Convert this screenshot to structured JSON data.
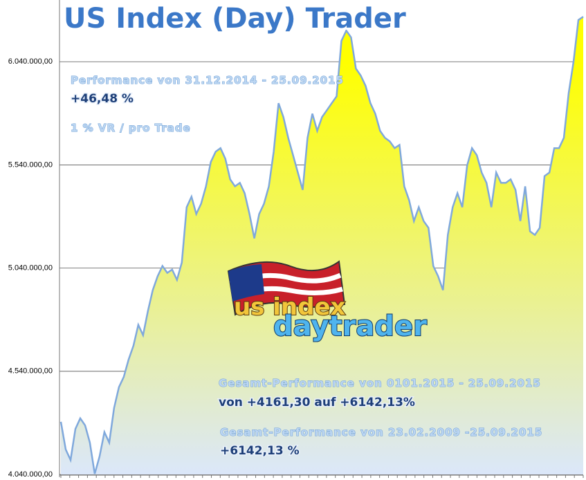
{
  "chart_data": {
    "type": "area",
    "title": "US Index (Day) Trader",
    "annotations": [
      "Performance  von  31.12.2014 - 25.09.2015",
      "+46,48  %",
      "1 % VR / pro Trade",
      "Gesamt-Performance  von  0101.2015 - 25.09.2015",
      "von +4161,30 auf  +6142,13%",
      "Gesamt-Performance  von  23.02.2009 -25.09.2015",
      "+6142,13 %"
    ],
    "logo": [
      "us index",
      "daytrader"
    ],
    "color": "#7fa8dc",
    "fill_top": "#ffff00",
    "fill_bottom": "#dbe7fa",
    "grid": true,
    "ylim": [
      4040000,
      6339000
    ],
    "yticks": [
      {
        "value": 4040000,
        "label": "4.040.000,00"
      },
      {
        "value": 4540000,
        "label": "4.540.000,00"
      },
      {
        "value": 5040000,
        "label": "5.040.000,00"
      },
      {
        "value": 5540000,
        "label": "5.540.000,00"
      },
      {
        "value": 6040000,
        "label": "6.040.000,00"
      }
    ],
    "values": [
      4295000,
      4161000,
      4110000,
      4261000,
      4312000,
      4278000,
      4194000,
      4043000,
      4127000,
      4245000,
      4194000,
      4362000,
      4463000,
      4513000,
      4597000,
      4664000,
      4765000,
      4715000,
      4832000,
      4933000,
      5000000,
      5050000,
      5017000,
      5033000,
      4983000,
      5067000,
      5335000,
      5386000,
      5302000,
      5352000,
      5436000,
      5554000,
      5604000,
      5621000,
      5570000,
      5470000,
      5436000,
      5453000,
      5403000,
      5302000,
      5184000,
      5302000,
      5352000,
      5436000,
      5604000,
      5839000,
      5772000,
      5671000,
      5587000,
      5503000,
      5419000,
      5671000,
      5788000,
      5705000,
      5772000,
      5805000,
      5839000,
      5872000,
      6141000,
      6191000,
      6158000,
      6007000,
      5973000,
      5923000,
      5839000,
      5788000,
      5705000,
      5671000,
      5654000,
      5621000,
      5637000,
      5436000,
      5369000,
      5268000,
      5335000,
      5268000,
      5235000,
      5050000,
      5000000,
      4933000,
      5201000,
      5335000,
      5403000,
      5335000,
      5537000,
      5621000,
      5587000,
      5503000,
      5453000,
      5335000,
      5503000,
      5453000,
      5453000,
      5470000,
      5419000,
      5268000,
      5436000,
      5218000,
      5201000,
      5235000,
      5486000,
      5503000,
      5621000,
      5621000,
      5671000,
      5889000,
      6040000,
      6242000,
      6258000
    ]
  }
}
